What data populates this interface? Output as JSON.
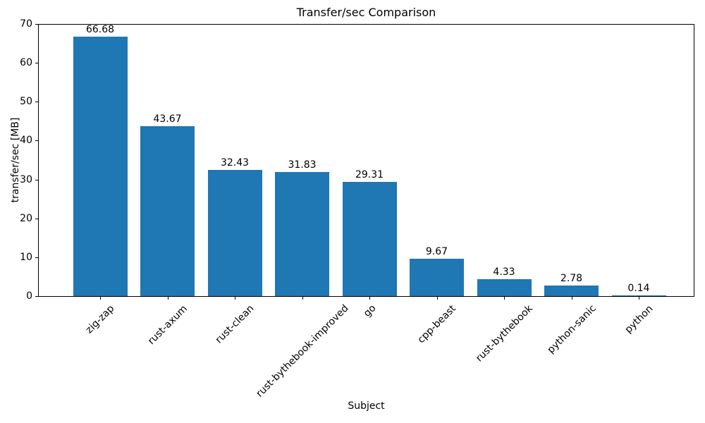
{
  "chart_data": {
    "type": "bar",
    "title": "Transfer/sec Comparison",
    "xlabel": "Subject",
    "ylabel": "transfer/sec [MB]",
    "categories": [
      "zig-zap",
      "rust-axum",
      "rust-clean",
      "rust-bythebook-improved",
      "go",
      "cpp-beast",
      "rust-bythebook",
      "python-sanic",
      "python"
    ],
    "values": [
      66.68,
      43.67,
      32.43,
      31.83,
      29.31,
      9.67,
      4.33,
      2.78,
      0.14
    ],
    "bar_labels": [
      "66.68",
      "43.67",
      "32.43",
      "31.83",
      "29.31",
      "9.67",
      "4.33",
      "2.78",
      "0.14"
    ],
    "ylim": [
      0,
      70
    ],
    "yticks": [
      0,
      10,
      20,
      30,
      40,
      50,
      60,
      70
    ],
    "xtick_rotation_deg": 45,
    "bar_color": "#1f77b4",
    "text_color": "#000000",
    "background_color": "#ffffff",
    "grid": false,
    "legend": "none"
  }
}
